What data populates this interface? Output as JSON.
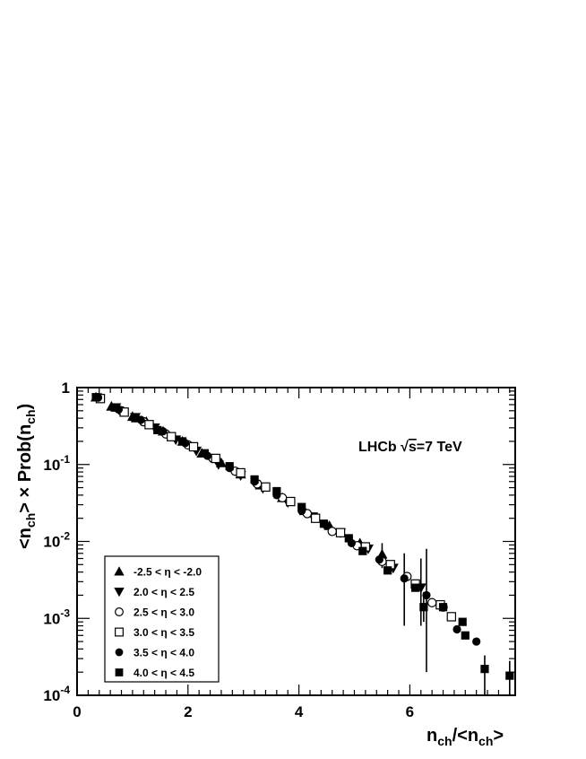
{
  "chart_data": {
    "type": "scatter",
    "title": "",
    "xlabel": {
      "main": "n",
      "sub": "ch",
      "sep": "/<",
      "main2": "n",
      "sub2": "ch",
      "close": ">"
    },
    "ylabel": {
      "p1": "<n",
      "sub1": "ch",
      "p2": "> × Prob(n",
      "sub2": "ch",
      "p3": ")"
    },
    "xlim": [
      0,
      7.9
    ],
    "ylim": [
      0.0001,
      1
    ],
    "yscale": "log",
    "x_ticks": [
      0,
      2,
      4,
      6
    ],
    "x_tick_labels": [
      "0",
      "2",
      "4",
      "6"
    ],
    "y_ticks": [
      0.0001,
      0.001,
      0.01,
      0.1,
      1
    ],
    "y_tick_labels": [
      {
        "base": "10",
        "exp": "-4"
      },
      {
        "base": "10",
        "exp": "-3"
      },
      {
        "base": "10",
        "exp": "-2"
      },
      {
        "base": "10",
        "exp": "-1"
      },
      {
        "base": "1",
        "exp": ""
      }
    ],
    "annotation": {
      "pre": "LHCb ",
      "sqrt": "√",
      "s": "s",
      "post": "=7 TeV"
    },
    "legend_position": "bottom-left",
    "grid": false,
    "series": [
      {
        "name": "-2.5 < η < -2.0",
        "marker": "triangle-up",
        "points": [
          [
            0.34,
            0.75
          ],
          [
            0.62,
            0.57
          ],
          [
            1.0,
            0.42
          ],
          [
            1.25,
            0.36
          ],
          [
            1.55,
            0.27
          ],
          [
            1.9,
            0.2
          ],
          [
            2.25,
            0.14
          ],
          [
            2.6,
            0.105
          ],
          [
            2.95,
            0.075
          ],
          [
            3.3,
            0.054
          ],
          [
            3.7,
            0.037
          ],
          [
            4.1,
            0.025
          ],
          [
            4.55,
            0.016
          ],
          [
            5.1,
            0.0095
          ],
          [
            5.5,
            0.0068
          ]
        ],
        "errors": [
          [
            5.5,
            0.0045,
            0.0095
          ]
        ]
      },
      {
        "name": "2.0 < η < 2.5",
        "marker": "triangle-down",
        "points": [
          [
            0.36,
            0.74
          ],
          [
            0.7,
            0.55
          ],
          [
            1.05,
            0.41
          ],
          [
            1.4,
            0.3
          ],
          [
            1.78,
            0.21
          ],
          [
            2.15,
            0.15
          ],
          [
            2.55,
            0.1
          ],
          [
            2.95,
            0.072
          ],
          [
            3.35,
            0.049
          ],
          [
            3.8,
            0.032
          ],
          [
            4.25,
            0.021
          ],
          [
            4.75,
            0.013
          ],
          [
            5.25,
            0.008
          ],
          [
            5.7,
            0.0045
          ],
          [
            6.2,
            0.0025
          ]
        ],
        "errors": [
          [
            6.2,
            0.0008,
            0.006
          ]
        ]
      },
      {
        "name": "2.5 < η < 3.0",
        "marker": "circle-open",
        "points": [
          [
            0.4,
            0.73
          ],
          [
            0.8,
            0.5
          ],
          [
            1.2,
            0.36
          ],
          [
            1.6,
            0.25
          ],
          [
            2.0,
            0.18
          ],
          [
            2.45,
            0.12
          ],
          [
            2.85,
            0.082
          ],
          [
            3.25,
            0.056
          ],
          [
            3.7,
            0.037
          ],
          [
            4.15,
            0.023
          ],
          [
            4.6,
            0.0135
          ],
          [
            5.05,
            0.0088
          ],
          [
            5.5,
            0.0055
          ],
          [
            5.95,
            0.0035
          ],
          [
            6.4,
            0.0016
          ],
          [
            6.6,
            0.0014
          ]
        ],
        "errors": []
      },
      {
        "name": "3.0 < η < 3.5",
        "marker": "square-open",
        "points": [
          [
            0.42,
            0.72
          ],
          [
            0.85,
            0.48
          ],
          [
            1.3,
            0.33
          ],
          [
            1.7,
            0.23
          ],
          [
            2.1,
            0.17
          ],
          [
            2.5,
            0.12
          ],
          [
            2.95,
            0.078
          ],
          [
            3.4,
            0.051
          ],
          [
            3.85,
            0.033
          ],
          [
            4.3,
            0.02
          ],
          [
            4.75,
            0.013
          ],
          [
            5.2,
            0.0085
          ],
          [
            5.65,
            0.005
          ],
          [
            6.1,
            0.0028
          ],
          [
            6.55,
            0.0015
          ],
          [
            6.75,
            0.00105
          ]
        ],
        "errors": []
      },
      {
        "name": "3.5 < η < 4.0",
        "marker": "circle-filled",
        "points": [
          [
            0.38,
            0.74
          ],
          [
            0.75,
            0.52
          ],
          [
            1.15,
            0.38
          ],
          [
            1.55,
            0.27
          ],
          [
            1.95,
            0.19
          ],
          [
            2.35,
            0.13
          ],
          [
            2.75,
            0.09
          ],
          [
            3.2,
            0.06
          ],
          [
            3.6,
            0.04
          ],
          [
            4.05,
            0.025
          ],
          [
            4.5,
            0.016
          ],
          [
            4.95,
            0.0095
          ],
          [
            5.45,
            0.0058
          ],
          [
            5.9,
            0.0033
          ],
          [
            6.3,
            0.002
          ],
          [
            6.85,
            0.00072
          ],
          [
            7.2,
            0.0005
          ]
        ],
        "errors": [
          [
            5.9,
            0.0008,
            0.007
          ],
          [
            6.3,
            0.0002,
            0.008
          ]
        ]
      },
      {
        "name": "4.0 < η < 4.5",
        "marker": "square-filled",
        "points": [
          [
            0.34,
            0.75
          ],
          [
            0.68,
            0.55
          ],
          [
            1.05,
            0.4
          ],
          [
            1.45,
            0.28
          ],
          [
            1.9,
            0.2
          ],
          [
            2.3,
            0.14
          ],
          [
            2.75,
            0.095
          ],
          [
            3.2,
            0.064
          ],
          [
            3.6,
            0.045
          ],
          [
            4.05,
            0.028
          ],
          [
            4.45,
            0.017
          ],
          [
            4.9,
            0.011
          ],
          [
            5.15,
            0.0075
          ],
          [
            5.6,
            0.0042
          ],
          [
            6.1,
            0.0025
          ],
          [
            6.25,
            0.0014
          ],
          [
            6.6,
            0.0014
          ],
          [
            6.95,
            0.0009
          ],
          [
            7.0,
            0.0006
          ],
          [
            7.35,
            0.00022
          ],
          [
            7.8,
            0.00018
          ]
        ],
        "errors": [
          [
            6.25,
            0.0009,
            0.0022
          ],
          [
            7.35,
            0.0001,
            0.00033
          ],
          [
            7.8,
            0.0001,
            0.00028
          ]
        ]
      }
    ]
  }
}
